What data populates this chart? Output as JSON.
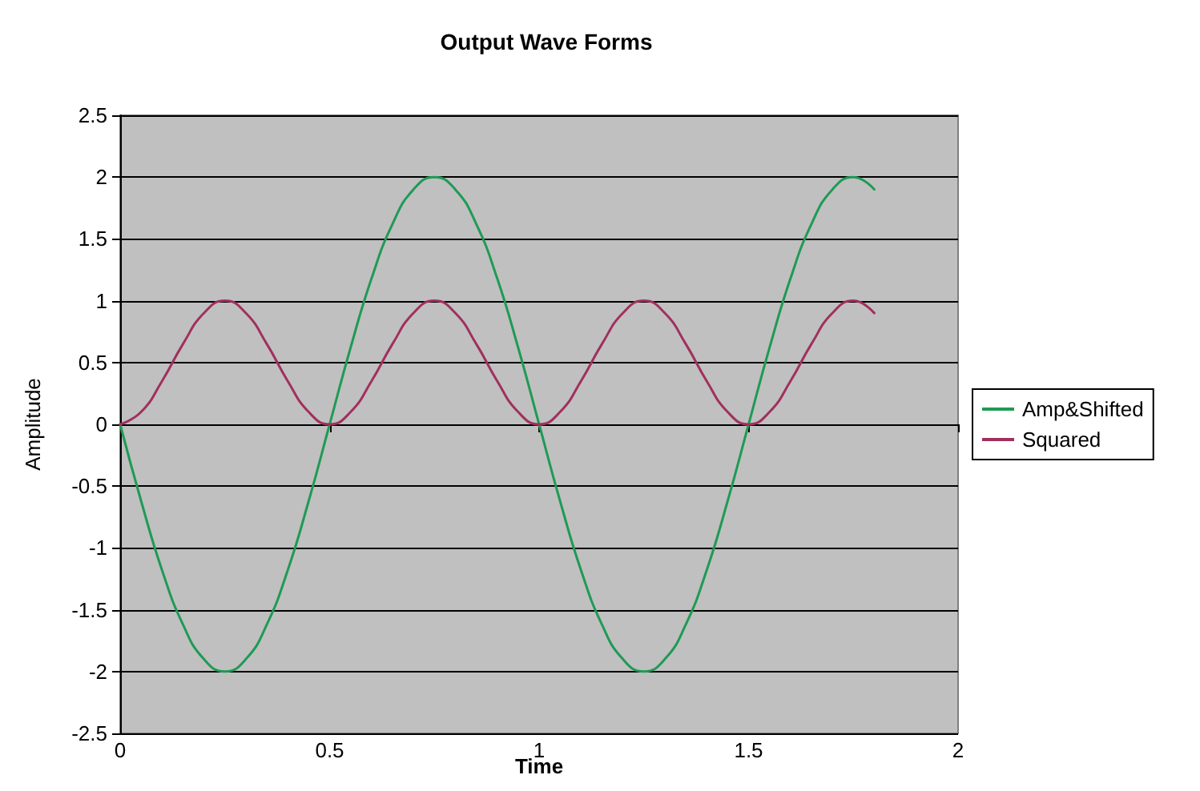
{
  "chart_data": {
    "type": "line",
    "title": "Output Wave Forms",
    "xlabel": "Time",
    "ylabel": "Amplitude",
    "x": [
      0,
      0.05,
      0.1,
      0.15,
      0.2,
      0.25,
      0.3,
      0.35,
      0.4,
      0.45,
      0.5,
      0.55,
      0.6,
      0.65,
      0.7,
      0.75,
      0.8,
      0.85,
      0.9,
      0.95,
      1,
      1.05,
      1.1,
      1.15,
      1.2,
      1.25,
      1.3,
      1.35,
      1.4,
      1.45,
      1.5,
      1.55,
      1.6,
      1.65,
      1.7,
      1.75,
      1.8
    ],
    "series": [
      {
        "name": "Amp&Shifted",
        "color": "#1f9a55",
        "values": [
          0,
          -0.62,
          -1.18,
          -1.62,
          -1.9,
          -2,
          -1.9,
          -1.62,
          -1.18,
          -0.62,
          0,
          0.62,
          1.18,
          1.62,
          1.9,
          2,
          1.9,
          1.62,
          1.18,
          0.62,
          0,
          -0.62,
          -1.18,
          -1.62,
          -1.9,
          -2,
          -1.9,
          -1.62,
          -1.18,
          -0.62,
          0,
          0.62,
          1.18,
          1.62,
          1.9,
          2,
          1.9
        ]
      },
      {
        "name": "Squared",
        "color": "#a0305e",
        "values": [
          0,
          0.1,
          0.35,
          0.65,
          0.9,
          1,
          0.9,
          0.65,
          0.35,
          0.1,
          0,
          0.1,
          0.35,
          0.65,
          0.9,
          1,
          0.9,
          0.65,
          0.35,
          0.1,
          0,
          0.1,
          0.35,
          0.65,
          0.9,
          1,
          0.9,
          0.65,
          0.35,
          0.1,
          0,
          0.1,
          0.35,
          0.65,
          0.9,
          1,
          0.9
        ]
      }
    ],
    "xlim": [
      0,
      2
    ],
    "xticks": [
      0,
      0.5,
      1,
      1.5,
      2
    ],
    "ylim": [
      -2.5,
      2.5
    ],
    "yticks": [
      -2.5,
      -2,
      -1.5,
      -1,
      -0.5,
      0,
      0.5,
      1,
      1.5,
      2,
      2.5
    ],
    "grid": "y",
    "legend": "right",
    "marker": "none",
    "line_style": "solid"
  }
}
